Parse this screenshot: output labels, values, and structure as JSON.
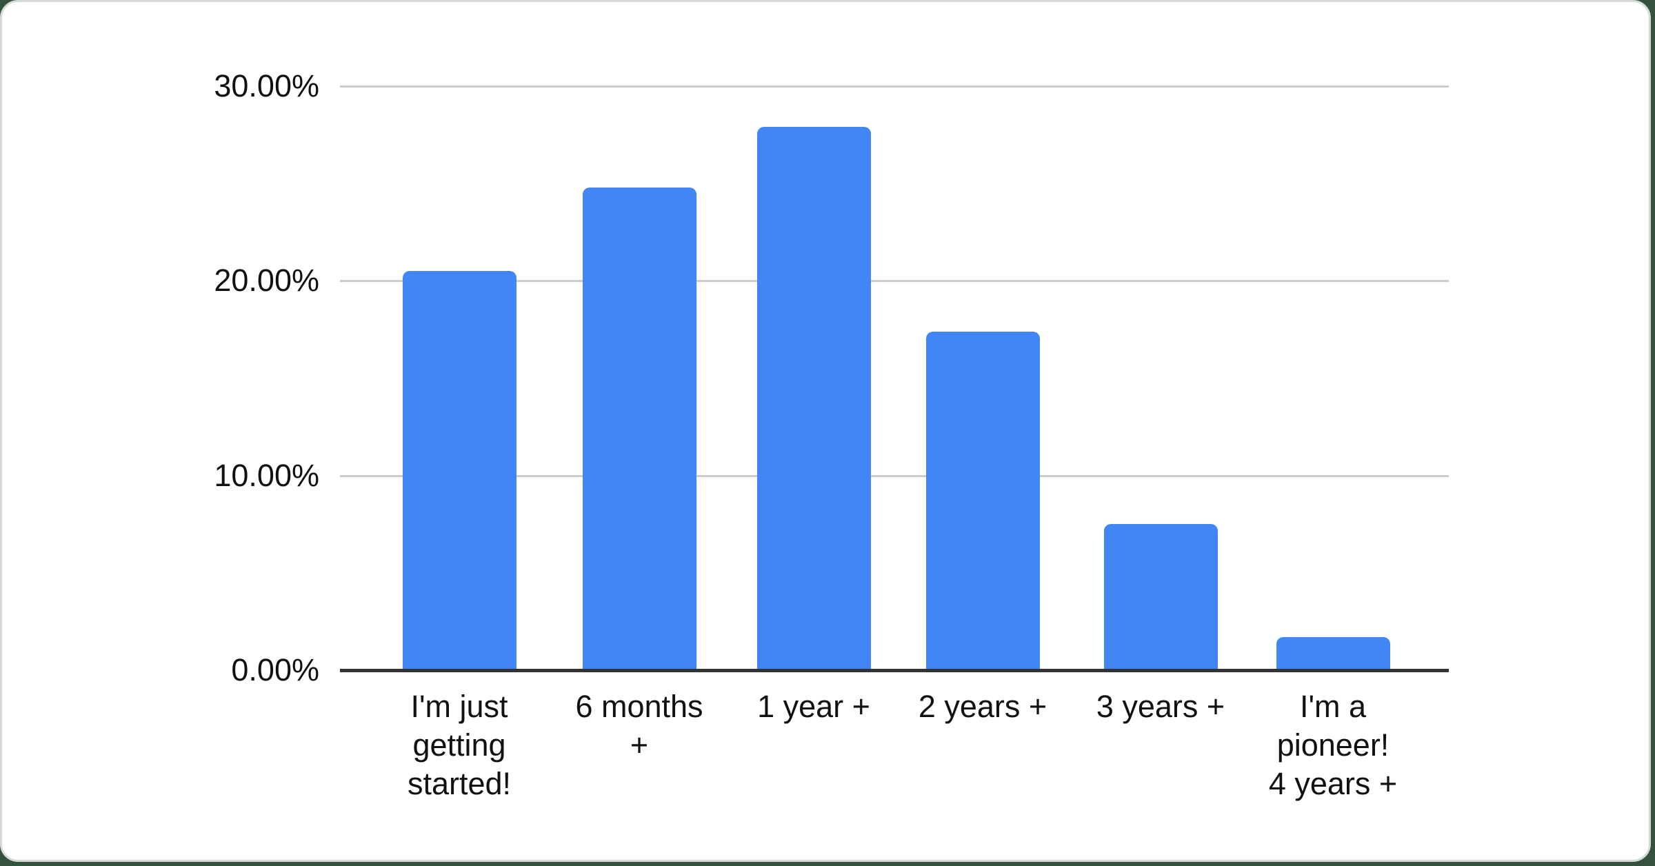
{
  "chart_data": {
    "type": "bar",
    "title": "",
    "categories": [
      "I'm just\ngetting\nstarted!",
      "6 months\n+",
      "1 year +",
      "2 years +",
      "3 years +",
      "I'm a\npioneer!\n4 years +"
    ],
    "values": [
      20.5,
      24.8,
      27.9,
      17.4,
      7.5,
      1.7
    ],
    "value_unit": "%",
    "y_ticks": [
      {
        "value": 0,
        "label": "0.00%"
      },
      {
        "value": 10,
        "label": "10.00%"
      },
      {
        "value": 20,
        "label": "20.00%"
      },
      {
        "value": 30,
        "label": "30.00%"
      }
    ],
    "ylim": [
      0,
      30
    ],
    "xlabel": "",
    "ylabel": "",
    "grid": true,
    "legend": "none",
    "colors": {
      "bar": "#4285f4",
      "gridline": "#cccccc",
      "axis_line": "#333333",
      "label_text": "#111111",
      "card_background": "#ffffff",
      "card_border": "#d5dad7",
      "page_background": "#35523f"
    }
  }
}
